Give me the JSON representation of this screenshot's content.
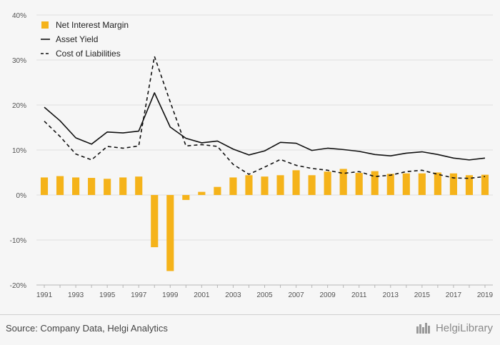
{
  "chart_data": {
    "type": "bar",
    "x": [
      1991,
      1992,
      1993,
      1994,
      1995,
      1996,
      1997,
      1998,
      1999,
      2000,
      2001,
      2002,
      2003,
      2004,
      2005,
      2006,
      2007,
      2008,
      2009,
      2010,
      2011,
      2012,
      2013,
      2014,
      2015,
      2016,
      2017,
      2018,
      2019
    ],
    "x_tick_labels": [
      "1991",
      "1993",
      "1995",
      "1997",
      "1999",
      "2001",
      "2003",
      "2005",
      "2007",
      "2009",
      "2011",
      "2013",
      "2015",
      "2017",
      "2019"
    ],
    "y_tick_labels": [
      "40%",
      "30%",
      "20%",
      "10%",
      "0%",
      "-10%",
      "-20%"
    ],
    "ylim": [
      -20,
      40
    ],
    "y_unit": "%",
    "grid": "horizontal",
    "legend_position": "top-left",
    "series": [
      {
        "name": "Net Interest Margin",
        "kind": "bar",
        "color": "#f5b31a",
        "values": [
          3.9,
          4.2,
          3.9,
          3.8,
          3.6,
          3.9,
          4.1,
          -11.6,
          -16.9,
          -1.1,
          0.7,
          1.8,
          3.9,
          4.4,
          4.1,
          4.4,
          5.5,
          4.4,
          5.2,
          5.8,
          4.9,
          5.3,
          4.7,
          4.8,
          4.8,
          5.0,
          4.8,
          4.4,
          4.5
        ]
      },
      {
        "name": "Asset Yield",
        "kind": "line",
        "style": "solid",
        "color": "#111111",
        "values": [
          19.5,
          16.5,
          12.7,
          11.3,
          14.0,
          13.8,
          14.2,
          22.7,
          15.1,
          12.6,
          11.6,
          12.0,
          10.2,
          8.9,
          9.8,
          11.7,
          11.5,
          9.9,
          10.4,
          10.1,
          9.7,
          9.0,
          8.7,
          9.3,
          9.6,
          9.0,
          8.2,
          7.8,
          8.2
        ]
      },
      {
        "name": "Cost of Liabilities",
        "kind": "line",
        "style": "dashed",
        "color": "#111111",
        "values": [
          16.4,
          13.0,
          9.1,
          7.8,
          10.8,
          10.4,
          10.9,
          30.8,
          20.7,
          10.9,
          11.2,
          10.8,
          6.8,
          4.6,
          6.2,
          7.9,
          6.6,
          5.9,
          5.5,
          4.8,
          5.2,
          4.1,
          4.4,
          5.2,
          5.5,
          4.6,
          3.8,
          3.7,
          4.1
        ]
      }
    ]
  },
  "footer": {
    "source": "Source: Company Data, Helgi Analytics",
    "brand": "HelgiLibrary"
  }
}
